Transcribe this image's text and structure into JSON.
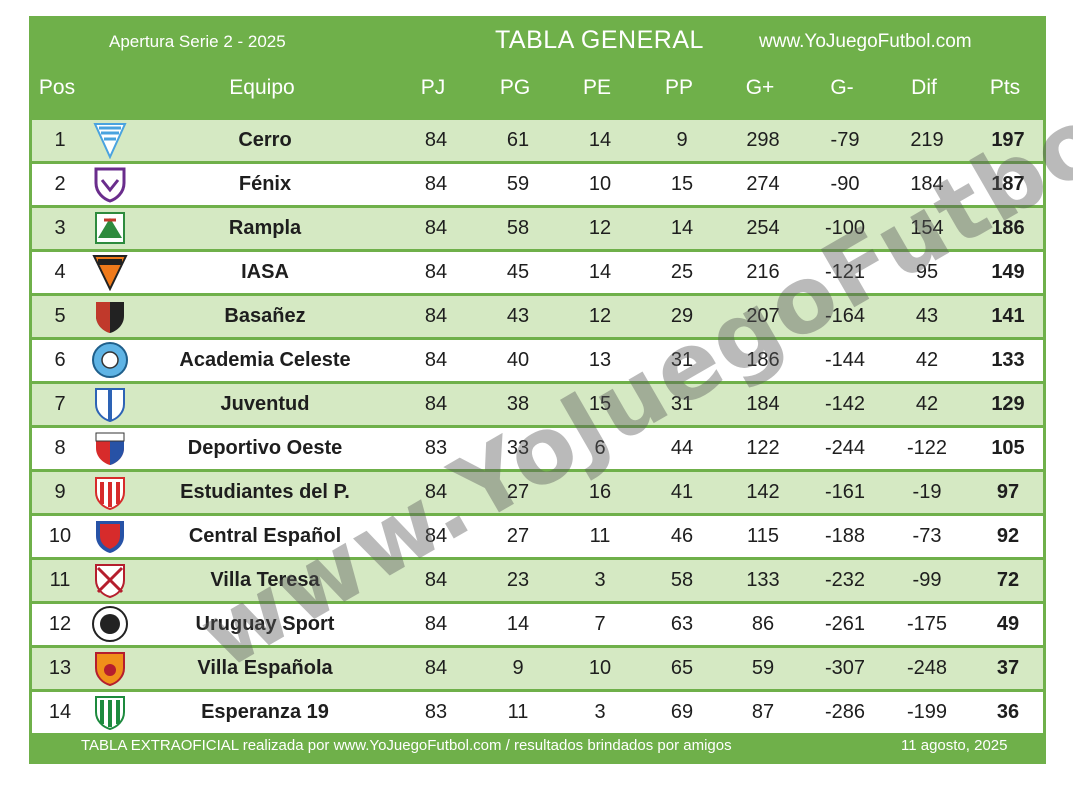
{
  "header": {
    "season": "Apertura Serie 2 - 2025",
    "title": "TABLA GENERAL",
    "site": "www.YoJuegoFutbol.com"
  },
  "columns": [
    "Pos",
    "Equipo",
    "PJ",
    "PG",
    "PE",
    "PP",
    "G+",
    "G-",
    "Dif",
    "Pts"
  ],
  "rows": [
    {
      "pos": "1",
      "team": "Cerro",
      "pj": "84",
      "pg": "61",
      "pe": "14",
      "pp": "9",
      "gf": "298",
      "ga": "-79",
      "dif": "219",
      "pts": "197",
      "crest": "cerro-crest"
    },
    {
      "pos": "2",
      "team": "Fénix",
      "pj": "84",
      "pg": "59",
      "pe": "10",
      "pp": "15",
      "gf": "274",
      "ga": "-90",
      "dif": "184",
      "pts": "187",
      "crest": "fenix-crest"
    },
    {
      "pos": "3",
      "team": "Rampla",
      "pj": "84",
      "pg": "58",
      "pe": "12",
      "pp": "14",
      "gf": "254",
      "ga": "-100",
      "dif": "154",
      "pts": "186",
      "crest": "rampla-crest"
    },
    {
      "pos": "4",
      "team": "IASA",
      "pj": "84",
      "pg": "45",
      "pe": "14",
      "pp": "25",
      "gf": "216",
      "ga": "-121",
      "dif": "95",
      "pts": "149",
      "crest": "iasa-crest"
    },
    {
      "pos": "5",
      "team": "Basañez",
      "pj": "84",
      "pg": "43",
      "pe": "12",
      "pp": "29",
      "gf": "207",
      "ga": "-164",
      "dif": "43",
      "pts": "141",
      "crest": "basanez-crest"
    },
    {
      "pos": "6",
      "team": "Academia Celeste",
      "pj": "84",
      "pg": "40",
      "pe": "13",
      "pp": "31",
      "gf": "186",
      "ga": "-144",
      "dif": "42",
      "pts": "133",
      "crest": "academia-celeste-crest"
    },
    {
      "pos": "7",
      "team": "Juventud",
      "pj": "84",
      "pg": "38",
      "pe": "15",
      "pp": "31",
      "gf": "184",
      "ga": "-142",
      "dif": "42",
      "pts": "129",
      "crest": "juventud-crest"
    },
    {
      "pos": "8",
      "team": "Deportivo Oeste",
      "pj": "83",
      "pg": "33",
      "pe": "6",
      "pp": "44",
      "gf": "122",
      "ga": "-244",
      "dif": "-122",
      "pts": "105",
      "crest": "deportivo-oeste-crest"
    },
    {
      "pos": "9",
      "team": "Estudiantes del P.",
      "pj": "84",
      "pg": "27",
      "pe": "16",
      "pp": "41",
      "gf": "142",
      "ga": "-161",
      "dif": "-19",
      "pts": "97",
      "crest": "estudiantes-crest"
    },
    {
      "pos": "10",
      "team": "Central Español",
      "pj": "84",
      "pg": "27",
      "pe": "11",
      "pp": "46",
      "gf": "115",
      "ga": "-188",
      "dif": "-73",
      "pts": "92",
      "crest": "central-espanol-crest"
    },
    {
      "pos": "11",
      "team": "Villa Teresa",
      "pj": "84",
      "pg": "23",
      "pe": "3",
      "pp": "58",
      "gf": "133",
      "ga": "-232",
      "dif": "-99",
      "pts": "72",
      "crest": "villa-teresa-crest"
    },
    {
      "pos": "12",
      "team": "Uruguay Sport",
      "pj": "84",
      "pg": "14",
      "pe": "7",
      "pp": "63",
      "gf": "86",
      "ga": "-261",
      "dif": "-175",
      "pts": "49",
      "crest": "dublin-crest"
    },
    {
      "pos": "13",
      "team": "Villa Española",
      "pj": "84",
      "pg": "9",
      "pe": "10",
      "pp": "65",
      "gf": "59",
      "ga": "-307",
      "dif": "-248",
      "pts": "37",
      "crest": "villa-espanola-crest"
    },
    {
      "pos": "14",
      "team": "Esperanza 19",
      "pj": "83",
      "pg": "11",
      "pe": "3",
      "pp": "69",
      "gf": "87",
      "ga": "-286",
      "dif": "-199",
      "pts": "36",
      "crest": "esperanza-crest"
    }
  ],
  "footer": {
    "note": "TABLA EXTRAOFICIAL realizada por www.YoJuegoFutbol.com / resultados brindados por amigos",
    "date": "11 agosto, 2025"
  },
  "watermark": "www.YoJuegoFutbol.com",
  "colors": {
    "green": "#6fb04a",
    "light_green": "#d5e9c3",
    "white": "#ffffff"
  }
}
